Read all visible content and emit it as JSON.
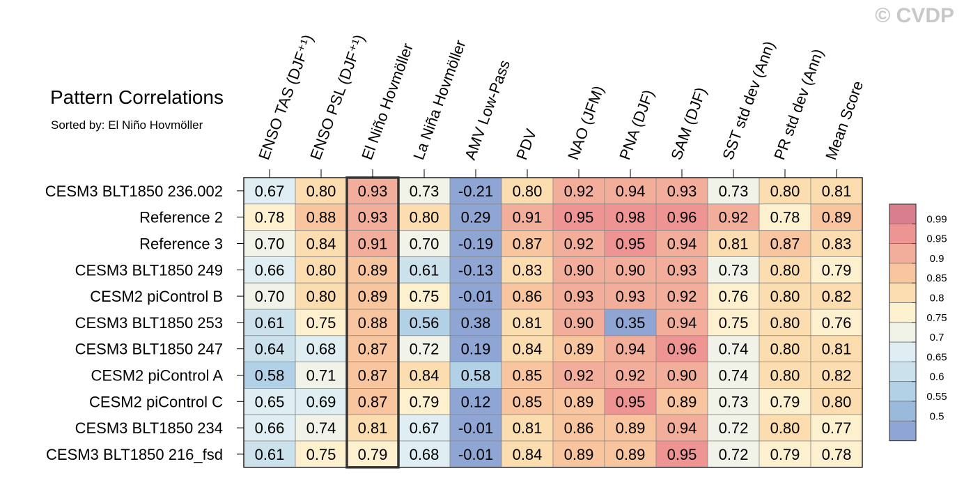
{
  "title": "Pattern Correlations",
  "subtitle": "Sorted by: El Niño Hovmöller",
  "watermark": "© CVDP",
  "chart_data": {
    "type": "heatmap",
    "columns": [
      "ENSO TAS (DJF⁺¹)",
      "ENSO PSL (DJF⁺¹)",
      "El Niño Hovmöller",
      "La Niña Hovmöller",
      "AMV Low-Pass",
      "PDV",
      "NAO (JFM)",
      "PNA (DJF)",
      "SAM (DJF)",
      "SST std dev (Ann)",
      "PR std dev (Ann)",
      "Mean Score"
    ],
    "rows": [
      "CESM3 BLT1850 236.002",
      "Reference 2",
      "Reference 3",
      "CESM3 BLT1850 249",
      "CESM2 piControl B",
      "CESM3 BLT1850 253",
      "CESM3 BLT1850 247",
      "CESM2 piControl A",
      "CESM2 piControl C",
      "CESM3 BLT1850 234",
      "CESM3 BLT1850 216_fsd"
    ],
    "values": [
      [
        "0.67",
        "0.80",
        "0.93",
        "0.73",
        "-0.21",
        "0.80",
        "0.92",
        "0.94",
        "0.93",
        "0.73",
        "0.80",
        "0.81"
      ],
      [
        "0.78",
        "0.88",
        "0.93",
        "0.80",
        "0.29",
        "0.91",
        "0.95",
        "0.98",
        "0.96",
        "0.92",
        "0.78",
        "0.89"
      ],
      [
        "0.70",
        "0.84",
        "0.91",
        "0.70",
        "-0.19",
        "0.87",
        "0.92",
        "0.95",
        "0.94",
        "0.81",
        "0.87",
        "0.83"
      ],
      [
        "0.66",
        "0.80",
        "0.89",
        "0.61",
        "-0.13",
        "0.83",
        "0.90",
        "0.90",
        "0.93",
        "0.73",
        "0.80",
        "0.79"
      ],
      [
        "0.70",
        "0.80",
        "0.89",
        "0.75",
        "-0.01",
        "0.86",
        "0.93",
        "0.93",
        "0.92",
        "0.76",
        "0.80",
        "0.82"
      ],
      [
        "0.61",
        "0.75",
        "0.88",
        "0.56",
        "0.38",
        "0.81",
        "0.90",
        "0.35",
        "0.94",
        "0.75",
        "0.80",
        "0.76"
      ],
      [
        "0.64",
        "0.68",
        "0.87",
        "0.72",
        "0.19",
        "0.84",
        "0.89",
        "0.94",
        "0.96",
        "0.74",
        "0.80",
        "0.81"
      ],
      [
        "0.58",
        "0.71",
        "0.87",
        "0.84",
        "0.58",
        "0.85",
        "0.92",
        "0.92",
        "0.90",
        "0.74",
        "0.80",
        "0.82"
      ],
      [
        "0.65",
        "0.69",
        "0.87",
        "0.79",
        "0.12",
        "0.85",
        "0.89",
        "0.95",
        "0.89",
        "0.73",
        "0.79",
        "0.80"
      ],
      [
        "0.66",
        "0.74",
        "0.81",
        "0.67",
        "-0.01",
        "0.81",
        "0.86",
        "0.89",
        "0.94",
        "0.72",
        "0.80",
        "0.77"
      ],
      [
        "0.61",
        "0.75",
        "0.79",
        "0.68",
        "-0.01",
        "0.84",
        "0.89",
        "0.89",
        "0.95",
        "0.72",
        "0.79",
        "0.78"
      ]
    ],
    "highlighted_column": "El Niño Hovmöller",
    "colorbar": {
      "labels": [
        "0.99",
        "0.95",
        "0.9",
        "0.85",
        "0.8",
        "0.75",
        "0.7",
        "0.65",
        "0.6",
        "0.55",
        "0.5"
      ],
      "bin_colors": [
        "#d87e8c",
        "#ee9593",
        "#f3ae9b",
        "#f8c59f",
        "#fbddb0",
        "#fcf0cf",
        "#f1f2e8",
        "#dfeef2",
        "#cbe2ec",
        "#b3d1e6",
        "#9bbadb",
        "#8fa6d4"
      ]
    }
  }
}
